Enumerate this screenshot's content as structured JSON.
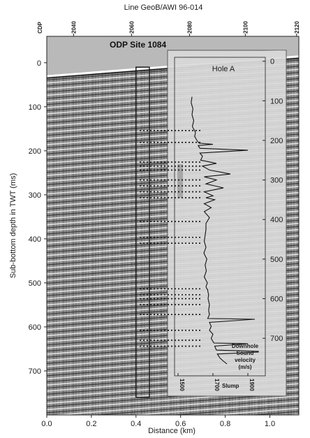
{
  "chart_data": [
    {
      "type": "seismic-section",
      "title": "Line GeoB/AWI 96-014",
      "site_label": "ODP Site 1084",
      "xlabel": "Distance (km)",
      "ylabel": "Sub-bottom depth in TWT (ms)",
      "xlim": [
        0.0,
        1.13
      ],
      "ylim": [
        -60,
        800
      ],
      "x_ticks": [
        0.0,
        0.2,
        0.4,
        0.6,
        0.8,
        1.0
      ],
      "x_tick_labels": [
        "0.0",
        "0.2",
        "0.4",
        "0.6",
        "0.8",
        "1.0"
      ],
      "y_ticks": [
        0,
        100,
        200,
        300,
        400,
        500,
        600,
        700
      ],
      "y_tick_labels": [
        "0",
        "100",
        "200",
        "300",
        "400",
        "500",
        "600",
        "700"
      ],
      "cdp_label": "CDP",
      "cdp_ticks": [
        {
          "cdp": 2040,
          "x": 0.12
        },
        {
          "cdp": 2060,
          "x": 0.38
        },
        {
          "cdp": 2080,
          "x": 0.64
        },
        {
          "cdp": 2100,
          "x": 0.89
        },
        {
          "cdp": 2120,
          "x": 1.12
        }
      ],
      "cdp_tick_labels": [
        "2040",
        "2060",
        "2080",
        "2100",
        "2120"
      ],
      "site_box": {
        "x": [
          0.4,
          0.46
        ],
        "y": [
          10,
          760
        ]
      },
      "seafloor": {
        "x": [
          0.0,
          1.13
        ],
        "y": [
          30,
          -15
        ]
      },
      "colors": {
        "box": "#111111",
        "text_dark": "#1a1a1a"
      }
    },
    {
      "type": "line",
      "title": "Hole A",
      "xlabel": "Downhole\nSound\nvelocity\n(m/s)",
      "annotation": "Slump",
      "xlim": [
        1480,
        2000
      ],
      "ylim": [
        -10,
        795
      ],
      "x_ticks": [
        1500,
        1700,
        1900
      ],
      "x_tick_labels": [
        "1500",
        "1700",
        "1900"
      ],
      "y_ticks": [
        0,
        100,
        200,
        300,
        400,
        500,
        600,
        700
      ],
      "y_tick_labels": [
        "0",
        "100",
        "200",
        "300",
        "400",
        "500",
        "600",
        "700"
      ],
      "gray_interval": {
        "y": [
          260,
          345
        ]
      },
      "dotted_markers_y": [
        175,
        205,
        255,
        265,
        275,
        300,
        315,
        330,
        345,
        405,
        445,
        460,
        575,
        590,
        600,
        615,
        640,
        680,
        705,
        720
      ],
      "series": [
        {
          "values_x": [
            1580,
            1575,
            1585,
            1580,
            1590,
            1582,
            1600,
            1595,
            1608,
            1620,
            1700,
            1615,
            1625,
            1900,
            1625,
            1640,
            1630,
            1720,
            1640,
            1680,
            1800,
            1650,
            1720,
            1660,
            1760,
            1650,
            1700,
            1660,
            1710,
            1650,
            1690,
            1650,
            1680,
            1660,
            1660,
            1655,
            1650,
            1660,
            1648,
            1665,
            1655,
            1662,
            1650,
            1668,
            1660,
            1665,
            1670,
            1670,
            1675,
            1672,
            1680,
            1675,
            1680,
            1670,
            1940,
            1680,
            1690,
            1680,
            1700,
            1690,
            1695,
            1700,
            1705,
            1900,
            1710,
            1720,
            1960,
            1960,
            1725,
            1740,
            1760,
            1780
          ],
          "values_y": [
            90,
            105,
            120,
            135,
            150,
            165,
            180,
            190,
            200,
            207,
            210,
            213,
            220,
            225,
            232,
            240,
            250,
            258,
            265,
            275,
            285,
            292,
            300,
            310,
            320,
            330,
            340,
            345,
            350,
            360,
            370,
            380,
            395,
            410,
            425,
            440,
            455,
            470,
            485,
            500,
            515,
            530,
            545,
            560,
            570,
            575,
            577,
            580,
            590,
            600,
            615,
            630,
            640,
            650,
            652,
            660,
            670,
            680,
            690,
            700,
            705,
            708,
            712,
            714,
            720,
            730,
            733,
            735,
            740,
            750,
            758,
            765
          ]
        }
      ]
    }
  ]
}
